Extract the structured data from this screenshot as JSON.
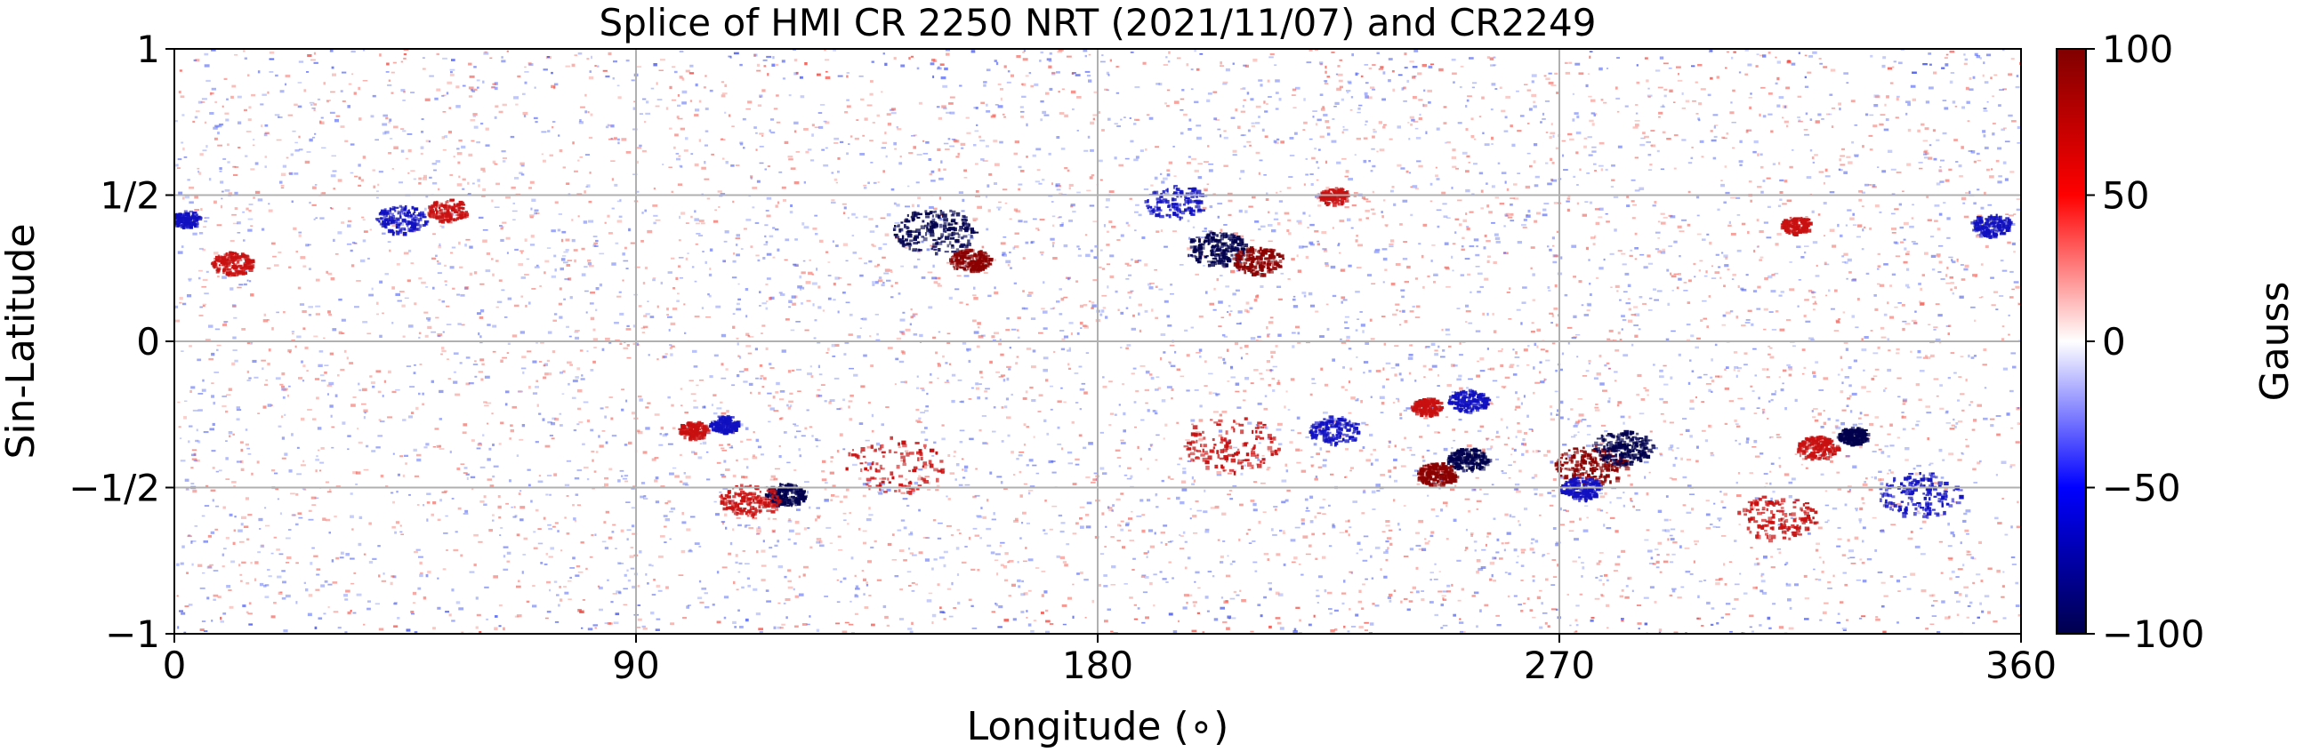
{
  "chart_data": {
    "type": "heatmap",
    "title": "Splice of HMI CR 2250 NRT (2021/11/07) and CR2249",
    "xlabel": "Longitude (∘)",
    "ylabel": "Sin-Latitude",
    "xlim": [
      0,
      360
    ],
    "ylim": [
      -1,
      1
    ],
    "x_ticks": [
      0,
      90,
      180,
      270,
      360
    ],
    "x_tick_labels": [
      "0",
      "90",
      "180",
      "270",
      "360"
    ],
    "y_ticks": [
      -1,
      -0.5,
      0,
      0.5,
      1
    ],
    "y_tick_labels": [
      "−1",
      "−1/2",
      "0",
      "1/2",
      "1"
    ],
    "grid": true,
    "colorbar": {
      "label": "Gauss",
      "range": [
        -100,
        100
      ],
      "ticks": [
        -100,
        -50,
        0,
        50,
        100
      ],
      "tick_labels": [
        "−100",
        "−50",
        "0",
        "50",
        "100"
      ],
      "colormap": "seismic",
      "colors": [
        "#00004d",
        "#0000ff",
        "#ffffff",
        "#ff0000",
        "#800000"
      ]
    },
    "features": [
      {
        "lon": 148,
        "sinlat": 0.38,
        "polarity": "negative",
        "intensity": 1.0,
        "spread_deg": 8
      },
      {
        "lon": 155,
        "sinlat": 0.28,
        "polarity": "positive",
        "intensity": 0.9,
        "spread_deg": 4
      },
      {
        "lon": 203,
        "sinlat": 0.32,
        "polarity": "negative",
        "intensity": 1.0,
        "spread_deg": 6
      },
      {
        "lon": 211,
        "sinlat": 0.28,
        "polarity": "positive",
        "intensity": 0.9,
        "spread_deg": 5
      },
      {
        "lon": 11,
        "sinlat": 0.27,
        "polarity": "positive",
        "intensity": 0.8,
        "spread_deg": 4
      },
      {
        "lon": 44,
        "sinlat": 0.42,
        "polarity": "negative",
        "intensity": 0.7,
        "spread_deg": 5
      },
      {
        "lon": 53,
        "sinlat": 0.45,
        "polarity": "positive",
        "intensity": 0.6,
        "spread_deg": 4
      },
      {
        "lon": 119,
        "sinlat": -0.52,
        "polarity": "negative",
        "intensity": 0.9,
        "spread_deg": 4
      },
      {
        "lon": 112,
        "sinlat": -0.54,
        "polarity": "positive",
        "intensity": 0.8,
        "spread_deg": 6
      },
      {
        "lon": 101,
        "sinlat": -0.3,
        "polarity": "positive",
        "intensity": 0.7,
        "spread_deg": 3
      },
      {
        "lon": 107,
        "sinlat": -0.28,
        "polarity": "negative",
        "intensity": 0.6,
        "spread_deg": 3
      },
      {
        "lon": 244,
        "sinlat": -0.22,
        "polarity": "positive",
        "intensity": 0.8,
        "spread_deg": 3
      },
      {
        "lon": 252,
        "sinlat": -0.2,
        "polarity": "negative",
        "intensity": 0.8,
        "spread_deg": 4
      },
      {
        "lon": 246,
        "sinlat": -0.45,
        "polarity": "positive",
        "intensity": 1.0,
        "spread_deg": 4
      },
      {
        "lon": 252,
        "sinlat": -0.4,
        "polarity": "negative",
        "intensity": 0.9,
        "spread_deg": 4
      },
      {
        "lon": 276,
        "sinlat": -0.42,
        "polarity": "positive",
        "intensity": 1.0,
        "spread_deg": 7
      },
      {
        "lon": 282,
        "sinlat": -0.36,
        "polarity": "negative",
        "intensity": 1.0,
        "spread_deg": 6
      },
      {
        "lon": 274,
        "sinlat": -0.5,
        "polarity": "negative",
        "intensity": 0.8,
        "spread_deg": 4
      },
      {
        "lon": 327,
        "sinlat": -0.32,
        "polarity": "negative",
        "intensity": 0.9,
        "spread_deg": 3
      },
      {
        "lon": 320,
        "sinlat": -0.36,
        "polarity": "positive",
        "intensity": 0.8,
        "spread_deg": 4
      },
      {
        "lon": 340,
        "sinlat": -0.52,
        "polarity": "negative",
        "intensity": 0.8,
        "spread_deg": 8
      },
      {
        "lon": 312,
        "sinlat": -0.6,
        "polarity": "positive",
        "intensity": 0.6,
        "spread_deg": 8
      },
      {
        "lon": 195,
        "sinlat": 0.48,
        "polarity": "negative",
        "intensity": 0.5,
        "spread_deg": 6
      },
      {
        "lon": 226,
        "sinlat": 0.5,
        "polarity": "positive",
        "intensity": 0.5,
        "spread_deg": 3
      },
      {
        "lon": 316,
        "sinlat": 0.4,
        "polarity": "positive",
        "intensity": 0.6,
        "spread_deg": 3
      },
      {
        "lon": 354,
        "sinlat": 0.4,
        "polarity": "negative",
        "intensity": 0.7,
        "spread_deg": 4
      },
      {
        "lon": 2,
        "sinlat": 0.42,
        "polarity": "negative",
        "intensity": 0.6,
        "spread_deg": 3
      },
      {
        "lon": 206,
        "sinlat": -0.35,
        "polarity": "positive",
        "intensity": 0.6,
        "spread_deg": 10
      },
      {
        "lon": 226,
        "sinlat": -0.3,
        "polarity": "negative",
        "intensity": 0.6,
        "spread_deg": 5
      },
      {
        "lon": 140,
        "sinlat": -0.42,
        "polarity": "positive",
        "intensity": 0.4,
        "spread_deg": 10
      }
    ]
  }
}
